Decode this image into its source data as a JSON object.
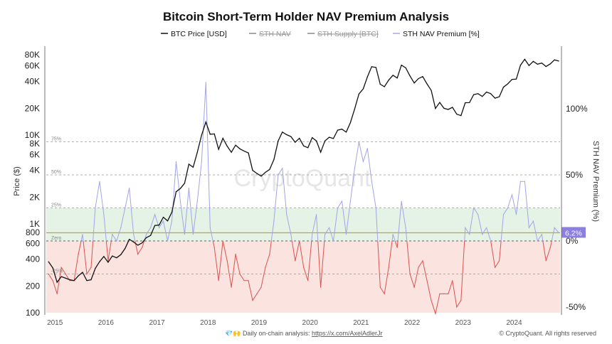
{
  "chart_data": {
    "type": "line",
    "title": "Bitcoin Short-Term Holder NAV Premium Analysis",
    "legend": {
      "placement": "top-center",
      "entries": [
        {
          "label": "BTC Price [USD]",
          "color": "#111111",
          "hidden": false
        },
        {
          "label": "STH NAV",
          "color": "#999999",
          "hidden": true
        },
        {
          "label": "STH Supply [BTC]",
          "color": "#999999",
          "hidden": true
        },
        {
          "label": "STH NAV Premium [%]",
          "color": "#a9a9e6",
          "hidden": false
        }
      ]
    },
    "ylabel_left": "Price ($)",
    "ylabel_right": "STH NAV Premium (%)",
    "left_axis": {
      "scale": "log",
      "range": [
        100,
        100000
      ],
      "ticks": [
        "80K",
        "60K",
        "40K",
        "20K",
        "10K",
        "8K",
        "6K",
        "4K",
        "2K",
        "1K",
        "800",
        "600",
        "400",
        "200",
        "100"
      ],
      "tick_values": [
        80000,
        60000,
        40000,
        20000,
        10000,
        8000,
        6000,
        4000,
        2000,
        1000,
        800,
        600,
        400,
        200,
        100
      ]
    },
    "right_axis": {
      "scale": "linear",
      "range": [
        -50,
        100
      ],
      "ticks": [
        "100%",
        "50%",
        "0%",
        "-50%"
      ],
      "tick_values": [
        100,
        50,
        0,
        -50
      ]
    },
    "x_ticks": [
      "2015",
      "2016",
      "2017",
      "2018",
      "2019",
      "2020",
      "2021",
      "2022",
      "2023",
      "2024"
    ],
    "levels": [
      {
        "label": "75%",
        "value": 75
      },
      {
        "label": "50%",
        "value": 50
      },
      {
        "label": "25%",
        "value": 25
      },
      {
        "label": "Zero",
        "value": 0
      },
      {
        "label": "-25%",
        "value": -25
      }
    ],
    "bands": [
      {
        "from": 0,
        "to": 25,
        "color": "#e5f3e6"
      },
      {
        "from": -50,
        "to": 0,
        "color": "#fbe3e0"
      }
    ],
    "current_premium": {
      "value": 6.2,
      "label": "6.2%",
      "color": "#8b7fe0",
      "line_color": "#c9a227"
    },
    "colors": {
      "price": "#111111",
      "premium_positive": "#a3a3e8",
      "premium_negative": "#d9534f"
    },
    "grid": false,
    "watermark": "CryptoQuant",
    "dates": [
      "2014-11",
      "2014-12",
      "2015-01",
      "2015-02",
      "2015-03",
      "2015-04",
      "2015-05",
      "2015-06",
      "2015-07",
      "2015-08",
      "2015-09",
      "2015-10",
      "2015-11",
      "2015-12",
      "2016-01",
      "2016-02",
      "2016-03",
      "2016-04",
      "2016-05",
      "2016-06",
      "2016-07",
      "2016-08",
      "2016-09",
      "2016-10",
      "2016-11",
      "2016-12",
      "2017-01",
      "2017-02",
      "2017-03",
      "2017-04",
      "2017-05",
      "2017-06",
      "2017-07",
      "2017-08",
      "2017-09",
      "2017-10",
      "2017-11",
      "2017-12",
      "2018-01",
      "2018-02",
      "2018-03",
      "2018-04",
      "2018-05",
      "2018-06",
      "2018-07",
      "2018-08",
      "2018-09",
      "2018-10",
      "2018-11",
      "2018-12",
      "2019-01",
      "2019-02",
      "2019-03",
      "2019-04",
      "2019-05",
      "2019-06",
      "2019-07",
      "2019-08",
      "2019-09",
      "2019-10",
      "2019-11",
      "2019-12",
      "2020-01",
      "2020-02",
      "2020-03",
      "2020-04",
      "2020-05",
      "2020-06",
      "2020-07",
      "2020-08",
      "2020-09",
      "2020-10",
      "2020-11",
      "2020-12",
      "2021-01",
      "2021-02",
      "2021-03",
      "2021-04",
      "2021-05",
      "2021-06",
      "2021-07",
      "2021-08",
      "2021-09",
      "2021-10",
      "2021-11",
      "2021-12",
      "2022-01",
      "2022-02",
      "2022-03",
      "2022-04",
      "2022-05",
      "2022-06",
      "2022-07",
      "2022-08",
      "2022-09",
      "2022-10",
      "2022-11",
      "2022-12",
      "2023-01",
      "2023-02",
      "2023-03",
      "2023-04",
      "2023-05",
      "2023-06",
      "2023-07",
      "2023-08",
      "2023-09",
      "2023-10",
      "2023-11",
      "2023-12",
      "2024-01",
      "2024-02",
      "2024-03",
      "2024-04",
      "2024-05",
      "2024-06",
      "2024-07",
      "2024-08",
      "2024-09",
      "2024-10",
      "2024-11"
    ],
    "series": [
      {
        "name": "BTC Price [USD]",
        "axis": "left",
        "values": [
          375,
          320,
          220,
          255,
          245,
          235,
          230,
          260,
          285,
          230,
          235,
          315,
          375,
          430,
          370,
          435,
          415,
          450,
          530,
          670,
          625,
          575,
          610,
          700,
          740,
          960,
          970,
          1190,
          1080,
          1350,
          2300,
          2500,
          2870,
          4700,
          4340,
          6400,
          10000,
          14000,
          10200,
          10300,
          6900,
          9200,
          7500,
          6400,
          7700,
          7000,
          6600,
          6300,
          4000,
          3700,
          3450,
          3800,
          4100,
          5300,
          8600,
          10800,
          10100,
          9600,
          8300,
          9200,
          7550,
          7200,
          9350,
          8600,
          6400,
          8600,
          9450,
          9140,
          11350,
          11650,
          10780,
          13800,
          19700,
          29000,
          33100,
          45200,
          58800,
          57700,
          37300,
          35000,
          41500,
          47100,
          43800,
          61300,
          57000,
          46300,
          38500,
          43200,
          45500,
          37700,
          31800,
          19900,
          23300,
          20000,
          19400,
          20500,
          17200,
          16550,
          23100,
          23150,
          28500,
          29200,
          27200,
          30500,
          29200,
          26000,
          27000,
          34600,
          37700,
          42300,
          42600,
          61200,
          71300,
          60600,
          67500,
          62700,
          64600,
          59000,
          63300,
          70200,
          68000
        ]
      },
      {
        "name": "STH NAV Premium [%]",
        "axis": "right",
        "values": [
          -25,
          -30,
          -40,
          -20,
          -25,
          -30,
          -30,
          -10,
          5,
          -25,
          -20,
          25,
          45,
          20,
          -15,
          5,
          0,
          10,
          25,
          40,
          5,
          -10,
          -5,
          5,
          10,
          20,
          10,
          15,
          0,
          15,
          60,
          30,
          5,
          40,
          5,
          30,
          60,
          120,
          10,
          -5,
          -30,
          0,
          -15,
          -35,
          -10,
          -25,
          -30,
          -30,
          -45,
          -40,
          -35,
          -20,
          -10,
          15,
          50,
          55,
          20,
          5,
          -15,
          0,
          -20,
          -30,
          5,
          20,
          -35,
          5,
          10,
          0,
          25,
          30,
          5,
          30,
          55,
          75,
          60,
          70,
          45,
          25,
          -35,
          -40,
          -20,
          5,
          -5,
          30,
          10,
          -25,
          -35,
          -20,
          -15,
          -30,
          -45,
          -55,
          -40,
          -40,
          -40,
          -30,
          -50,
          -45,
          10,
          5,
          25,
          20,
          5,
          10,
          0,
          -20,
          -15,
          20,
          25,
          35,
          20,
          45,
          45,
          10,
          15,
          0,
          5,
          -15,
          -5,
          10,
          6.2
        ]
      }
    ]
  },
  "footer": {
    "emoji": "💎🙌",
    "text": "Daily on-chain analysis: ",
    "link": "https://x.com/AxelAdlerJr",
    "copyright": "© CryptoQuant. All rights reserved"
  }
}
